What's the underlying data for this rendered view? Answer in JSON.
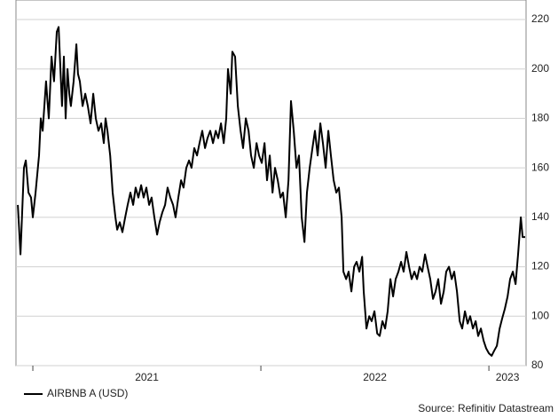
{
  "chart_data": {
    "type": "line",
    "x": [
      2020.934,
      2020.946,
      2020.961,
      2020.969,
      2020.981,
      2020.992,
      2021.0,
      2021.012,
      2021.027,
      2021.035,
      2021.043,
      2021.058,
      2021.07,
      2021.082,
      2021.093,
      2021.105,
      2021.113,
      2021.121,
      2021.128,
      2021.136,
      2021.144,
      2021.152,
      2021.16,
      2021.167,
      2021.179,
      2021.191,
      2021.198,
      2021.206,
      2021.218,
      2021.23,
      2021.241,
      2021.253,
      2021.265,
      2021.276,
      2021.288,
      2021.3,
      2021.311,
      2021.319,
      2021.327,
      2021.339,
      2021.35,
      2021.362,
      2021.37,
      2021.381,
      2021.393,
      2021.405,
      2021.416,
      2021.428,
      2021.44,
      2021.451,
      2021.463,
      2021.475,
      2021.486,
      2021.498,
      2021.51,
      2021.521,
      2021.533,
      2021.545,
      2021.556,
      2021.568,
      2021.58,
      2021.591,
      2021.603,
      2021.615,
      2021.626,
      2021.638,
      2021.65,
      2021.661,
      2021.673,
      2021.685,
      2021.696,
      2021.708,
      2021.72,
      2021.731,
      2021.743,
      2021.755,
      2021.766,
      2021.778,
      2021.79,
      2021.802,
      2021.813,
      2021.825,
      2021.837,
      2021.848,
      2021.856,
      2021.868,
      2021.875,
      2021.887,
      2021.899,
      2021.911,
      2021.922,
      2021.934,
      2021.946,
      2021.957,
      2021.969,
      2021.981,
      2021.992,
      2022.004,
      2022.016,
      2022.027,
      2022.039,
      2022.051,
      2022.062,
      2022.074,
      2022.086,
      2022.097,
      2022.109,
      2022.121,
      2022.132,
      2022.144,
      2022.156,
      2022.167,
      2022.179,
      2022.191,
      2022.202,
      2022.214,
      2022.226,
      2022.237,
      2022.249,
      2022.261,
      2022.272,
      2022.284,
      2022.296,
      2022.307,
      2022.319,
      2022.331,
      2022.342,
      2022.354,
      2022.362,
      2022.374,
      2022.385,
      2022.397,
      2022.409,
      2022.42,
      2022.432,
      2022.444,
      2022.451,
      2022.463,
      2022.475,
      2022.486,
      2022.498,
      2022.51,
      2022.521,
      2022.533,
      2022.545,
      2022.556,
      2022.568,
      2022.58,
      2022.591,
      2022.603,
      2022.615,
      2022.626,
      2022.638,
      2022.65,
      2022.661,
      2022.673,
      2022.685,
      2022.696,
      2022.708,
      2022.72,
      2022.731,
      2022.743,
      2022.755,
      2022.766,
      2022.778,
      2022.79,
      2022.802,
      2022.813,
      2022.825,
      2022.837,
      2022.848,
      2022.86,
      2022.872,
      2022.883,
      2022.895,
      2022.907,
      2022.918,
      2022.93,
      2022.942,
      2022.953,
      2022.965,
      2022.977,
      2022.988,
      2023.0,
      2023.012,
      2023.023,
      2023.035,
      2023.047,
      2023.058,
      2023.07,
      2023.082,
      2023.093,
      2023.105,
      2023.117,
      2023.128,
      2023.14,
      2023.148,
      2023.159
    ],
    "series": [
      {
        "name": "AIRBNB A (USD)",
        "color": "#000000",
        "values": [
          145,
          125,
          160,
          163,
          150,
          148,
          140,
          150,
          165,
          180,
          175,
          195,
          180,
          205,
          195,
          215,
          217,
          200,
          185,
          205,
          180,
          200,
          190,
          185,
          195,
          210,
          198,
          195,
          185,
          190,
          185,
          178,
          190,
          180,
          175,
          178,
          170,
          180,
          175,
          165,
          150,
          140,
          135,
          138,
          134,
          140,
          145,
          150,
          145,
          152,
          148,
          153,
          148,
          152,
          145,
          148,
          140,
          133,
          138,
          142,
          145,
          152,
          148,
          145,
          140,
          148,
          155,
          152,
          160,
          163,
          160,
          168,
          165,
          170,
          175,
          168,
          172,
          175,
          170,
          175,
          172,
          178,
          170,
          180,
          200,
          190,
          207,
          205,
          185,
          175,
          168,
          180,
          175,
          165,
          160,
          170,
          165,
          162,
          170,
          155,
          165,
          150,
          160,
          155,
          148,
          150,
          140,
          155,
          187,
          175,
          160,
          165,
          140,
          130,
          150,
          160,
          168,
          175,
          165,
          178,
          170,
          160,
          175,
          165,
          155,
          150,
          152,
          140,
          118,
          115,
          118,
          110,
          120,
          122,
          118,
          124,
          110,
          95,
          100,
          98,
          102,
          93,
          92,
          98,
          95,
          102,
          115,
          108,
          115,
          118,
          122,
          118,
          126,
          120,
          115,
          118,
          115,
          120,
          118,
          125,
          120,
          115,
          107,
          110,
          115,
          105,
          110,
          118,
          120,
          115,
          118,
          110,
          98,
          95,
          102,
          97,
          100,
          95,
          98,
          92,
          95,
          90,
          87,
          85,
          84,
          86,
          88,
          95,
          99,
          103,
          108,
          115,
          118,
          113,
          125,
          140,
          132,
          132
        ]
      }
    ],
    "xlim": [
      2020.926,
      2023.163
    ],
    "xticks": [
      2021,
      2022,
      2023
    ],
    "ylim": [
      80,
      220
    ],
    "yticks": [
      80,
      100,
      120,
      140,
      160,
      180,
      200,
      220
    ],
    "grid": true,
    "legend": "bottom-left",
    "source": "Source: Refinitiv Datastream"
  }
}
